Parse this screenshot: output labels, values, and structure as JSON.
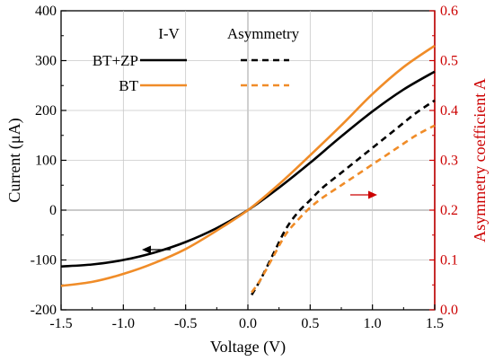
{
  "chart_data": {
    "type": "line",
    "xlabel": "Voltage (V)",
    "ylabel_left": "Current (μA)",
    "ylabel_right": "Asymmetry coefficient A",
    "xlim": [
      -1.5,
      1.5
    ],
    "ylim_left": [
      -200,
      400
    ],
    "ylim_right": [
      0.0,
      0.6
    ],
    "x_ticks": [
      "-1.5",
      "-1.0",
      "-0.5",
      "0.0",
      "0.5",
      "1.0",
      "1.5"
    ],
    "y_left_ticks": [
      "-200",
      "-100",
      "0",
      "100",
      "200",
      "300",
      "400"
    ],
    "y_right_ticks": [
      "0.0",
      "0.1",
      "0.2",
      "0.3",
      "0.4",
      "0.5",
      "0.6"
    ],
    "grid": true,
    "colors": {
      "bt_zp": "#000000",
      "bt": "#f08c28",
      "right_axis": "#cc0000"
    },
    "legend": {
      "header_iv": "I-V",
      "header_asym": "Asymmetry",
      "entry_1": "BT+ZP",
      "entry_2": "BT"
    },
    "series": [
      {
        "name": "BT+ZP",
        "style": "solid",
        "axis": "left",
        "x": [
          -1.5,
          -1.25,
          -1.0,
          -0.75,
          -0.5,
          -0.25,
          0.0,
          0.25,
          0.5,
          0.75,
          1.0,
          1.25,
          1.5
        ],
        "y": [
          -113,
          -109,
          -100,
          -85,
          -64,
          -36,
          0,
          45,
          95,
          148,
          198,
          242,
          278
        ]
      },
      {
        "name": "BT",
        "style": "solid",
        "axis": "left",
        "x": [
          -1.5,
          -1.25,
          -1.0,
          -0.75,
          -0.5,
          -0.25,
          0.0,
          0.25,
          0.5,
          0.75,
          1.0,
          1.25,
          1.5
        ],
        "y": [
          -152,
          -144,
          -128,
          -106,
          -78,
          -41,
          0,
          52,
          110,
          170,
          233,
          287,
          330
        ]
      },
      {
        "name": "BT+ZP",
        "style": "dashed",
        "axis": "right",
        "x": [
          0.03,
          0.1,
          0.2,
          0.3,
          0.4,
          0.5,
          0.6,
          0.75,
          0.9,
          1.05,
          1.2,
          1.35,
          1.5
        ],
        "y": [
          0.03,
          0.06,
          0.11,
          0.16,
          0.195,
          0.22,
          0.245,
          0.275,
          0.305,
          0.335,
          0.365,
          0.395,
          0.42
        ]
      },
      {
        "name": "BT",
        "style": "dashed",
        "axis": "right",
        "x": [
          0.03,
          0.1,
          0.2,
          0.3,
          0.4,
          0.5,
          0.6,
          0.75,
          0.9,
          1.05,
          1.2,
          1.35,
          1.5
        ],
        "y": [
          0.035,
          0.06,
          0.105,
          0.15,
          0.18,
          0.205,
          0.225,
          0.25,
          0.275,
          0.3,
          0.325,
          0.35,
          0.37
        ]
      }
    ]
  }
}
